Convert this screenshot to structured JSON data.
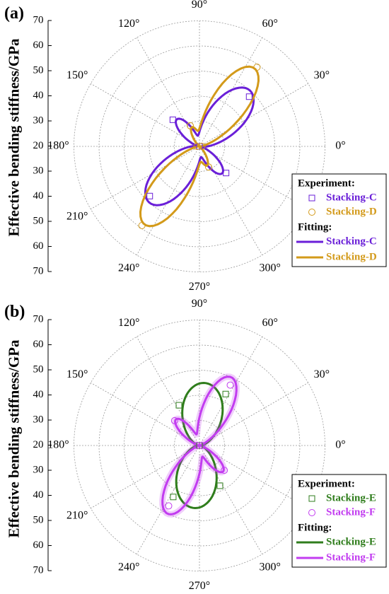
{
  "chart_data": [
    {
      "type": "polar",
      "panel_label": "(a)",
      "ylabel": "Effective bending stiffness/GPa",
      "r_ticks": [
        70,
        60,
        50,
        40,
        30,
        20,
        30,
        40,
        50,
        60,
        70
      ],
      "r_range": [
        20,
        70
      ],
      "angle_labels": [
        "0°",
        "30°",
        "60°",
        "90°",
        "120°",
        "150°",
        "180°",
        "210°",
        "240°",
        "270°",
        "300°"
      ],
      "grid": true,
      "legend_position": "right",
      "legend": {
        "experiment_title": "Experiment:",
        "fitting_title": "Fitting:"
      },
      "series": [
        {
          "name": "Stacking-C",
          "color": "#6a1fd8",
          "marker": "square",
          "experiment": [
            {
              "theta": 0,
              "r": 20
            },
            {
              "theta": 45,
              "r": 48
            },
            {
              "theta": 135,
              "r": 35
            },
            {
              "theta": 180,
              "r": 20
            },
            {
              "theta": 225,
              "r": 48
            },
            {
              "theta": 315,
              "r": 35
            }
          ],
          "fit": {
            "base": 20,
            "amp1": 30,
            "center1": 48,
            "width1": 32,
            "amp2": 14,
            "center2": 130,
            "width2": 22
          }
        },
        {
          "name": "Stacking-D",
          "color": "#d39a1a",
          "marker": "circle",
          "experiment": [
            {
              "theta": 0,
              "r": 21
            },
            {
              "theta": 54,
              "r": 59
            },
            {
              "theta": 114,
              "r": 29
            },
            {
              "theta": 180,
              "r": 21
            },
            {
              "theta": 234,
              "r": 59
            },
            {
              "theta": 294,
              "r": 29
            }
          ],
          "fit": {
            "base": 20,
            "amp1": 38,
            "center1": 55,
            "width1": 25,
            "amp2": 8,
            "center2": 112,
            "width2": 18
          }
        }
      ]
    },
    {
      "type": "polar",
      "panel_label": "(b)",
      "ylabel": "Effective bending stiffness/GPa",
      "r_ticks": [
        70,
        60,
        50,
        40,
        30,
        20,
        30,
        40,
        50,
        60,
        70
      ],
      "r_range": [
        20,
        70
      ],
      "angle_labels": [
        "0°",
        "30°",
        "60°",
        "90°",
        "120°",
        "150°",
        "180°",
        "210°",
        "240°",
        "270°",
        "300°"
      ],
      "grid": true,
      "legend_position": "right",
      "legend": {
        "experiment_title": "Experiment:",
        "fitting_title": "Fitting:"
      },
      "series": [
        {
          "name": "Stacking-E",
          "color": "#2f7d1c",
          "marker": "square",
          "experiment": [
            {
              "theta": 0,
              "r": 20
            },
            {
              "theta": 63,
              "r": 43
            },
            {
              "theta": 117,
              "r": 38
            },
            {
              "theta": 180,
              "r": 20
            },
            {
              "theta": 243,
              "r": 43
            },
            {
              "theta": 297,
              "r": 38
            }
          ],
          "fit": {
            "base": 20,
            "amp1": 25,
            "center1": 85,
            "width1": 45,
            "amp2": 0,
            "center2": 130,
            "width2": 20
          }
        },
        {
          "name": "Stacking-F",
          "color": "#c23cf0",
          "marker": "circle",
          "experiment": [
            {
              "theta": 0,
              "r": 21
            },
            {
              "theta": 63,
              "r": 47
            },
            {
              "theta": 135,
              "r": 34
            },
            {
              "theta": 180,
              "r": 21
            },
            {
              "theta": 243,
              "r": 47
            },
            {
              "theta": 315,
              "r": 34
            }
          ],
          "fit": {
            "base": 20,
            "amp1": 30,
            "center1": 65,
            "width1": 25,
            "amp2": 14,
            "center2": 132,
            "width2": 20
          }
        }
      ]
    }
  ]
}
